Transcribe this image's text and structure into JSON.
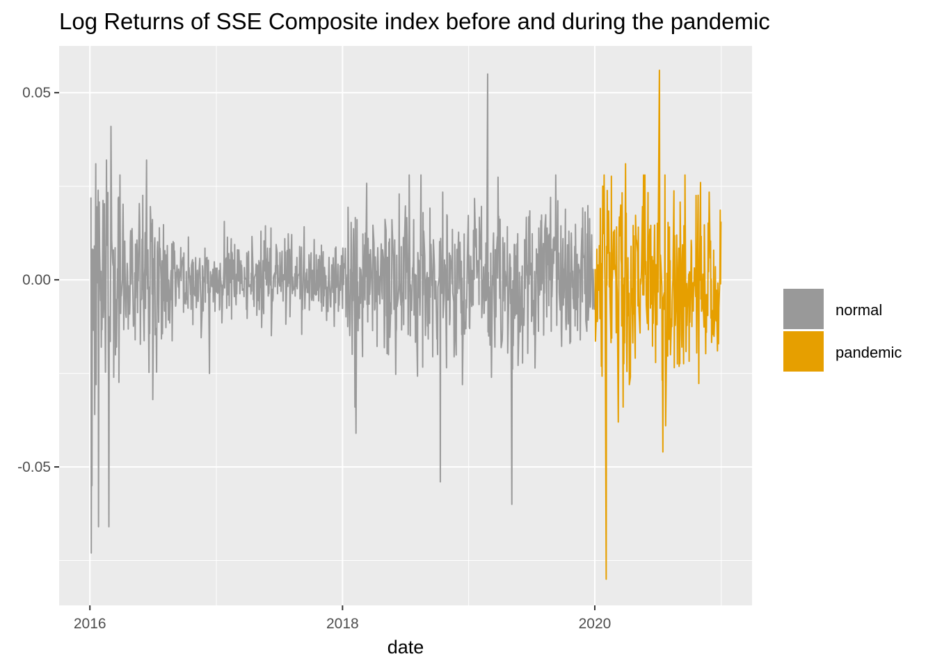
{
  "chart_data": {
    "type": "line",
    "title": "Log Returns of SSE Composite index before and during the pandemic",
    "xlabel": "date",
    "ylabel": "",
    "x_ticks": [
      {
        "value": "2016-01-01",
        "label": "2016"
      },
      {
        "value": "2018-01-01",
        "label": "2018"
      },
      {
        "value": "2020-01-01",
        "label": "2020"
      }
    ],
    "y_ticks": [
      {
        "value": -0.05,
        "label": "-0.05"
      },
      {
        "value": 0.0,
        "label": "0.00"
      },
      {
        "value": 0.05,
        "label": "0.05"
      }
    ],
    "xlim": [
      "2015-10-04",
      "2021-03-31"
    ],
    "ylim": [
      -0.087,
      0.0625
    ],
    "grid": true,
    "legend_position": "right",
    "series": [
      {
        "name": "normal",
        "color": "#999999",
        "x_range": [
          "2016-01-04",
          "2019-12-31"
        ],
        "notable_points": [
          {
            "x": "2016-01-04",
            "y": 0.022
          },
          {
            "x": "2016-01-05",
            "y": -0.073
          },
          {
            "x": "2016-01-07",
            "y": -0.055
          },
          {
            "x": "2016-01-15",
            "y": -0.036
          },
          {
            "x": "2016-01-18",
            "y": 0.031
          },
          {
            "x": "2016-01-26",
            "y": -0.066
          },
          {
            "x": "2016-02-18",
            "y": 0.032
          },
          {
            "x": "2016-02-25",
            "y": -0.066
          },
          {
            "x": "2016-03-02",
            "y": 0.041
          },
          {
            "x": "2016-06-12",
            "y": 0.032
          },
          {
            "x": "2016-07-01",
            "y": -0.032
          },
          {
            "x": "2016-12-12",
            "y": -0.025
          },
          {
            "x": "2018-02-06",
            "y": -0.034
          },
          {
            "x": "2018-02-09",
            "y": -0.041
          },
          {
            "x": "2018-10-11",
            "y": -0.054
          },
          {
            "x": "2019-02-25",
            "y": 0.055
          },
          {
            "x": "2019-05-06",
            "y": -0.06
          }
        ]
      },
      {
        "name": "pandemic",
        "color": "#E69F00",
        "x_range": [
          "2020-01-02",
          "2020-12-31"
        ],
        "notable_points": [
          {
            "x": "2020-02-03",
            "y": -0.08
          },
          {
            "x": "2020-03-09",
            "y": -0.038
          },
          {
            "x": "2020-03-23",
            "y": -0.034
          },
          {
            "x": "2020-03-30",
            "y": 0.031
          },
          {
            "x": "2020-07-06",
            "y": 0.056
          },
          {
            "x": "2020-07-16",
            "y": -0.046
          },
          {
            "x": "2020-07-24",
            "y": -0.039
          },
          {
            "x": "2020-09-09",
            "y": -0.018
          },
          {
            "x": "2020-11-02",
            "y": 0.026
          },
          {
            "x": "2020-12-21",
            "y": -0.019
          }
        ]
      }
    ]
  }
}
